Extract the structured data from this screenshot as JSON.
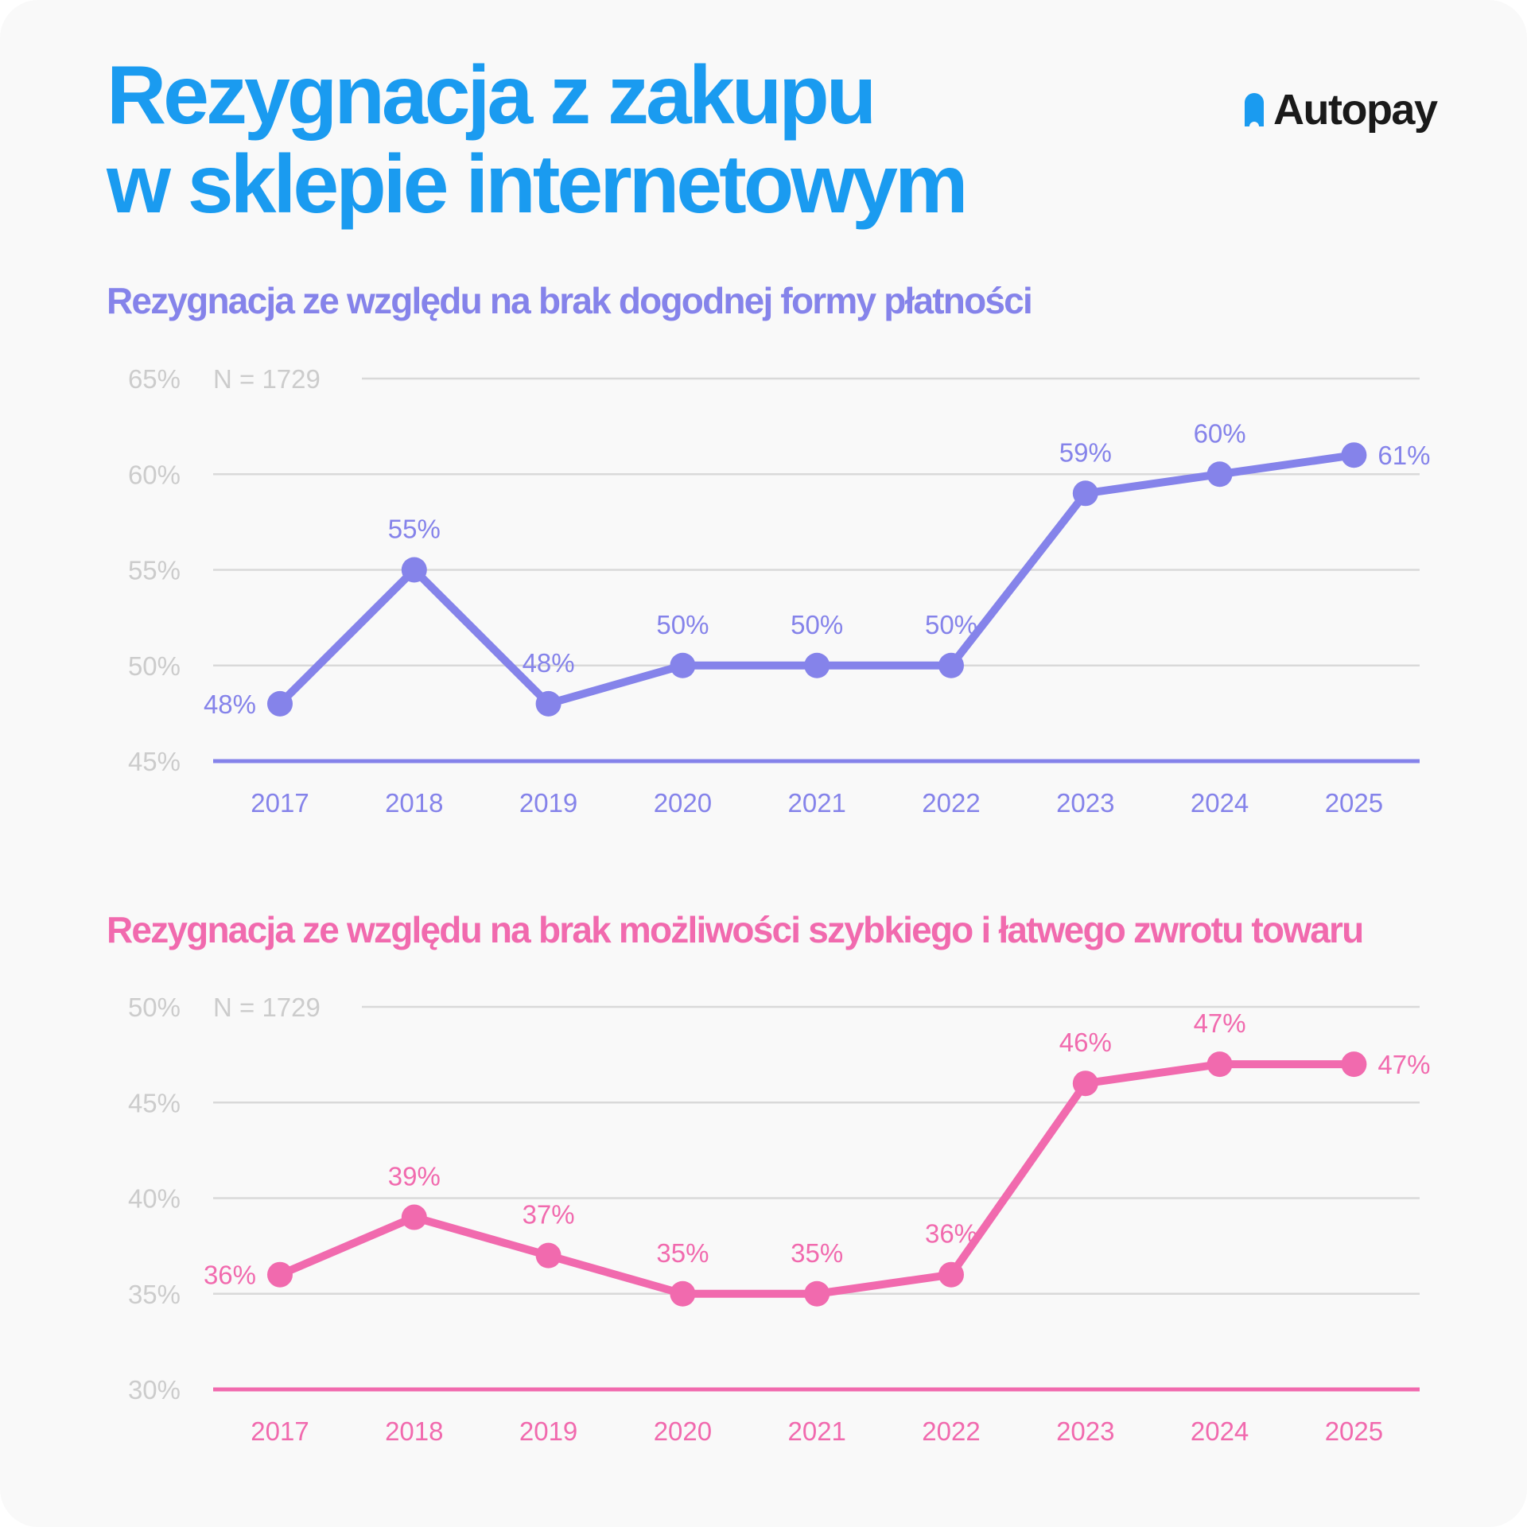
{
  "title": {
    "line1": "Rezygnacja z zakupu",
    "line2": "w sklepie internetowym"
  },
  "logo": {
    "text": "Autopay",
    "icon": "bookmark-icon"
  },
  "colors": {
    "title": "#1a9bf0",
    "series1": "#8583ea",
    "series2": "#f16aae",
    "gridline": "#d9d9d9",
    "tick_label": "#cccccc"
  },
  "chart_data": [
    {
      "type": "line",
      "title": "Rezygnacja ze względu na brak dogodnej formy płatności",
      "annotation": "N = 1729",
      "x": [
        "2017",
        "2018",
        "2019",
        "2020",
        "2021",
        "2022",
        "2023",
        "2024",
        "2025"
      ],
      "series": [
        {
          "values": [
            48,
            55,
            48,
            50,
            50,
            50,
            59,
            60,
            61
          ],
          "labels": [
            "48%",
            "55%",
            "48%",
            "50%",
            "50%",
            "50%",
            "59%",
            "60%",
            "61%"
          ]
        }
      ],
      "ylim": [
        45,
        65
      ],
      "yticks": [
        45,
        50,
        55,
        60,
        65
      ],
      "ytick_labels": [
        "45%",
        "50%",
        "55%",
        "60%",
        "65%"
      ],
      "grid": true
    },
    {
      "type": "line",
      "title": "Rezygnacja ze względu na brak możliwości szybkiego i łatwego zwrotu towaru",
      "annotation": "N = 1729",
      "x": [
        "2017",
        "2018",
        "2019",
        "2020",
        "2021",
        "2022",
        "2023",
        "2024",
        "2025"
      ],
      "series": [
        {
          "values": [
            36,
            39,
            37,
            35,
            35,
            36,
            46,
            47,
            47
          ],
          "labels": [
            "36%",
            "39%",
            "37%",
            "35%",
            "35%",
            "36%",
            "46%",
            "47%",
            "47%"
          ]
        }
      ],
      "ylim": [
        30,
        50
      ],
      "yticks": [
        30,
        35,
        40,
        45,
        50
      ],
      "ytick_labels": [
        "30%",
        "35%",
        "40%",
        "45%",
        "50%"
      ],
      "grid": true
    }
  ]
}
